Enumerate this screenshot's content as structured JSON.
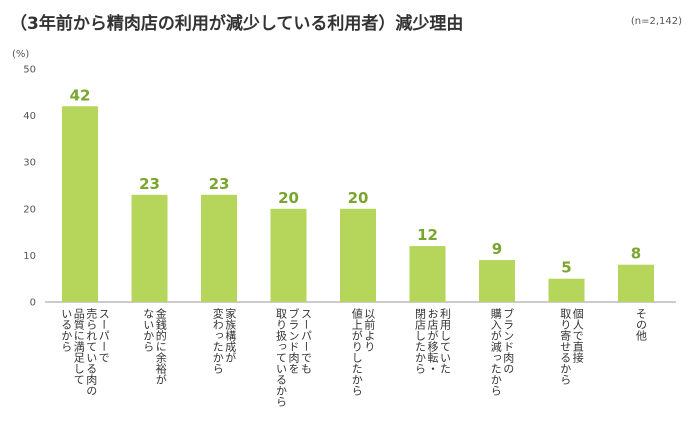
{
  "chart_data": {
    "type": "bar",
    "title": "（3年前から精肉店の利用が減少している利用者）減少理由",
    "note": "(n=2,142)",
    "ylabel": "(%)",
    "xlabel": "",
    "ylim": [
      0,
      50
    ],
    "yticks": [
      0,
      10,
      20,
      30,
      40,
      50
    ],
    "grid": false,
    "bar_color": "#b5d55b",
    "label_color": "#7aa52e",
    "categories": [
      [
        "スーパーで",
        "売られている肉の",
        "品質に満足して",
        "いるから"
      ],
      [
        "金銭的に余裕が",
        "ないから"
      ],
      [
        "家族構成が",
        "変わったから"
      ],
      [
        "スーパーでも",
        "ブランド肉を",
        "取り扱っているから"
      ],
      [
        "以前より",
        "値上がりしたから"
      ],
      [
        "利用していた",
        "お店が移転・",
        "閉店したから"
      ],
      [
        "ブランド肉の",
        "購入が減ったから"
      ],
      [
        "個人で直接",
        "取り寄せるから"
      ],
      [
        "その他"
      ]
    ],
    "values": [
      42,
      23,
      23,
      20,
      20,
      12,
      9,
      5,
      8
    ]
  }
}
